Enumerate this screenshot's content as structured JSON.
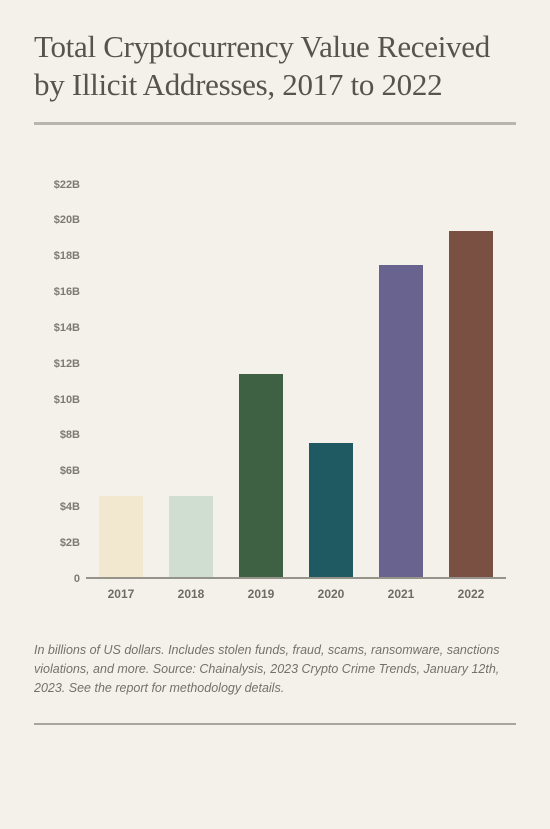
{
  "title": "Total Cryptocurrency Value Received by Illicit Addresses, 2017 to 2022",
  "chart": {
    "type": "bar",
    "background_color": "#f4f1ea",
    "axis_color": "#96938b",
    "tick_font_color": "#7d7a73",
    "xtick_font_color": "#6f6c65",
    "tick_fontsize": 11,
    "xtick_fontsize": 12,
    "ylim_max": 22,
    "ytick_step": 2,
    "bar_width_pct": 10.5,
    "yticks": [
      {
        "v": 0,
        "label": "0"
      },
      {
        "v": 2,
        "label": "$2B"
      },
      {
        "v": 4,
        "label": "$4B"
      },
      {
        "v": 6,
        "label": "$6B"
      },
      {
        "v": 8,
        "label": "$8B"
      },
      {
        "v": 10,
        "label": "$10B"
      },
      {
        "v": 12,
        "label": "$12B"
      },
      {
        "v": 14,
        "label": "$14B"
      },
      {
        "v": 16,
        "label": "$16B"
      },
      {
        "v": 18,
        "label": "$18B"
      },
      {
        "v": 20,
        "label": "$20B"
      },
      {
        "v": 22,
        "label": "$22B"
      }
    ],
    "bars": [
      {
        "label": "2017",
        "value": 4.6,
        "color": "#f1e8cf"
      },
      {
        "label": "2018",
        "value": 4.6,
        "color": "#cfded1"
      },
      {
        "label": "2019",
        "value": 11.4,
        "color": "#3d6142"
      },
      {
        "label": "2020",
        "value": 7.6,
        "color": "#1f5a63"
      },
      {
        "label": "2021",
        "value": 17.5,
        "color": "#69648f"
      },
      {
        "label": "2022",
        "value": 19.4,
        "color": "#7a5043"
      }
    ]
  },
  "caption": {
    "part1": "In billions of US dollars. Includes stolen funds, fraud, scams, ransomware, sanctions violations, and more. Source: Chainalysis,",
    "part2": " 2023 Crypto Crime Trends, January 12th, 2023. ",
    "part3": "See the report for methodology details."
  }
}
